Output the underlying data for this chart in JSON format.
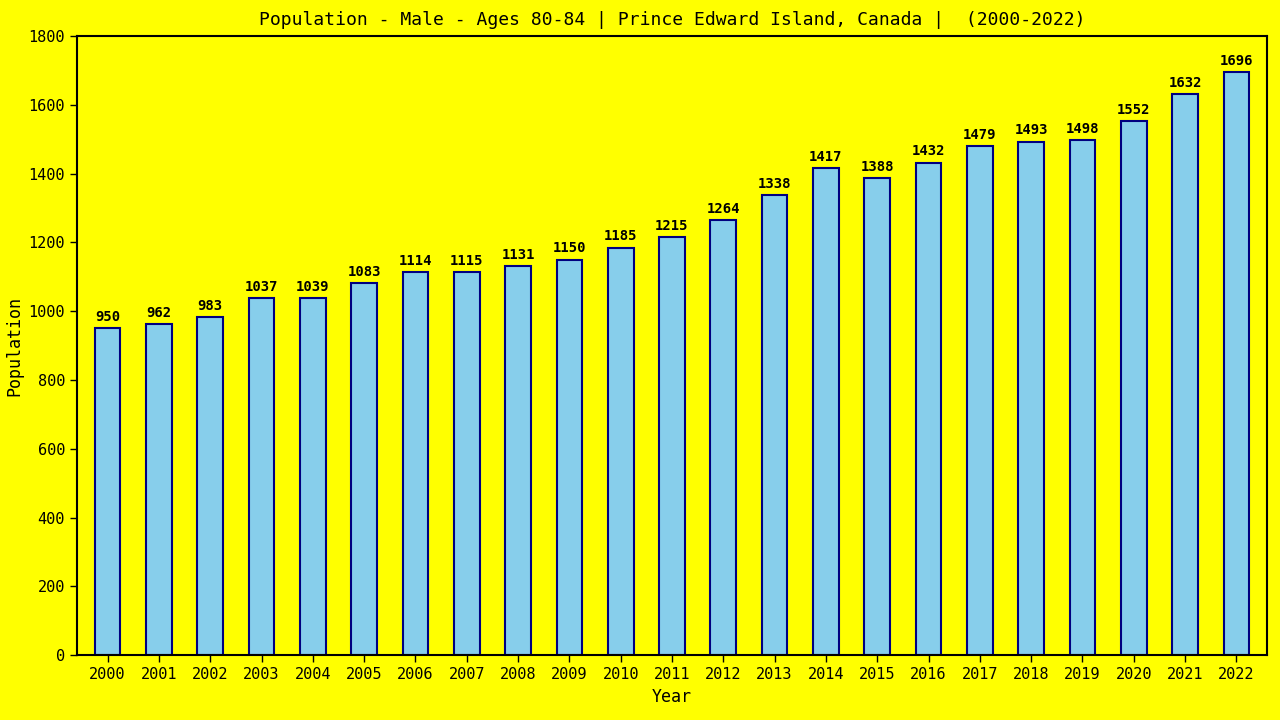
{
  "title": "Population - Male - Ages 80-84 | Prince Edward Island, Canada |  (2000-2022)",
  "xlabel": "Year",
  "ylabel": "Population",
  "background_color": "#ffff00",
  "bar_color": "#87ceeb",
  "bar_edge_color": "#000080",
  "years": [
    2000,
    2001,
    2002,
    2003,
    2004,
    2005,
    2006,
    2007,
    2008,
    2009,
    2010,
    2011,
    2012,
    2013,
    2014,
    2015,
    2016,
    2017,
    2018,
    2019,
    2020,
    2021,
    2022
  ],
  "values": [
    950,
    962,
    983,
    1037,
    1039,
    1083,
    1114,
    1115,
    1131,
    1150,
    1185,
    1215,
    1264,
    1338,
    1417,
    1388,
    1432,
    1479,
    1493,
    1498,
    1552,
    1632,
    1696
  ],
  "ylim": [
    0,
    1800
  ],
  "yticks": [
    0,
    200,
    400,
    600,
    800,
    1000,
    1200,
    1400,
    1600,
    1800
  ],
  "title_fontsize": 13,
  "label_fontsize": 12,
  "tick_fontsize": 11,
  "value_fontsize": 10,
  "bar_width": 0.5,
  "font_family": "monospace"
}
